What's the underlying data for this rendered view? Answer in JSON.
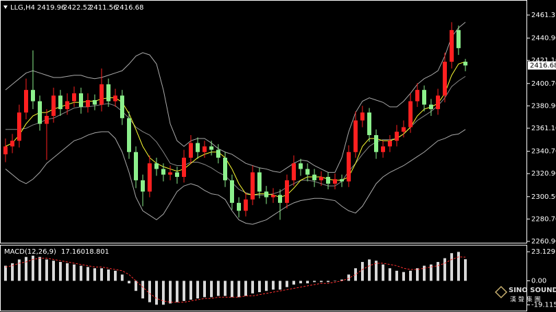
{
  "chart_data": [
    {
      "type": "candlestick",
      "title": "LLG,H4",
      "header_values": [
        2419.96,
        2422.52,
        2411.56,
        2416.68
      ],
      "up_color": "#ff2020",
      "down_color": "#8cf08c",
      "ylim": [
        2259.08,
        2471.6
      ],
      "yticks": [
        2461.31,
        {
          "value": 2440.9,
          "label": "2440.90"
        },
        {
          "value": 2421.1,
          "label": "2421.10"
        },
        {
          "value": 2400.7,
          "label": "2400.70"
        },
        {
          "value": 2380.9,
          "label": "2380.90"
        },
        {
          "value": 2361.1,
          "label": "2361.10"
        },
        {
          "value": 2340.7,
          "label": "2340.70"
        },
        {
          "value": 2320.9,
          "label": "2320.90"
        },
        {
          "value": 2300.5,
          "label": "2300.50"
        },
        {
          "value": 2280.7,
          "label": "2280.70"
        },
        {
          "value": 2260.9,
          "label": "2260.90"
        }
      ],
      "open": [
        2338,
        2345,
        2350,
        2375,
        2395,
        2385,
        2365,
        2372,
        2390,
        2378,
        2385,
        2392,
        2380,
        2386,
        2382,
        2400,
        2385,
        2390,
        2370,
        2340,
        2315,
        2305,
        2330,
        2325,
        2320,
        2322,
        2318,
        2335,
        2348,
        2340,
        2345,
        2342,
        2335,
        2315,
        2295,
        2288,
        2298,
        2322,
        2305,
        2300,
        2302,
        2295,
        2315,
        2330,
        2325,
        2320,
        2315,
        2318,
        2312,
        2316,
        2314,
        2340,
        2368,
        2375,
        2355,
        2340,
        2345,
        2350,
        2358,
        2362,
        2385,
        2395,
        2382,
        2378,
        2390,
        2420,
        2448,
        2419.96
      ],
      "high": [
        2352,
        2356,
        2382,
        2405,
        2430,
        2390,
        2378,
        2397,
        2395,
        2392,
        2398,
        2397,
        2392,
        2391,
        2414,
        2405,
        2396,
        2395,
        2376,
        2345,
        2320,
        2337,
        2335,
        2330,
        2328,
        2327,
        2342,
        2355,
        2353,
        2350,
        2350,
        2347,
        2340,
        2320,
        2300,
        2304,
        2328,
        2326,
        2310,
        2308,
        2307,
        2320,
        2337,
        2334,
        2330,
        2325,
        2323,
        2322,
        2321,
        2320,
        2346,
        2376,
        2381,
        2379,
        2360,
        2350,
        2355,
        2364,
        2368,
        2392,
        2401,
        2399,
        2387,
        2396,
        2428,
        2455,
        2452,
        2422.52
      ],
      "low": [
        2331,
        2339,
        2344,
        2369,
        2378,
        2359,
        2333,
        2366,
        2372,
        2373,
        2380,
        2374,
        2375,
        2377,
        2376,
        2380,
        2380,
        2364,
        2334,
        2308,
        2292,
        2300,
        2319,
        2314,
        2315,
        2312,
        2313,
        2330,
        2334,
        2335,
        2337,
        2330,
        2309,
        2289,
        2282,
        2283,
        2293,
        2299,
        2294,
        2295,
        2280,
        2290,
        2310,
        2319,
        2314,
        2309,
        2310,
        2307,
        2307,
        2309,
        2309,
        2335,
        2362,
        2349,
        2334,
        2335,
        2340,
        2345,
        2353,
        2357,
        2380,
        2376,
        2372,
        2373,
        2384,
        2414,
        2426,
        2411.56
      ],
      "close": [
        2345,
        2350,
        2375,
        2395,
        2385,
        2365,
        2372,
        2390,
        2378,
        2385,
        2392,
        2380,
        2386,
        2382,
        2400,
        2385,
        2390,
        2370,
        2340,
        2315,
        2305,
        2330,
        2325,
        2320,
        2322,
        2318,
        2335,
        2348,
        2340,
        2345,
        2342,
        2335,
        2315,
        2295,
        2288,
        2298,
        2322,
        2305,
        2300,
        2302,
        2295,
        2315,
        2330,
        2325,
        2320,
        2315,
        2318,
        2312,
        2316,
        2314,
        2340,
        2368,
        2375,
        2355,
        2340,
        2345,
        2350,
        2358,
        2362,
        2385,
        2395,
        2382,
        2378,
        2390,
        2420,
        2448,
        2432,
        2416.68
      ],
      "series": [
        {
          "color": "#aaaaaa",
          "values": [
            2395,
            2400,
            2405,
            2410,
            2412,
            2410,
            2408,
            2406,
            2406,
            2407,
            2408,
            2408,
            2406,
            2405,
            2406,
            2408,
            2410,
            2412,
            2418,
            2425,
            2428,
            2426,
            2418,
            2395,
            2365,
            2350,
            2345,
            2350,
            2352,
            2352,
            2348,
            2343,
            2340,
            2338,
            2334,
            2330,
            2328,
            2326,
            2325,
            2323,
            2322,
            2326,
            2330,
            2333,
            2332,
            2328,
            2325,
            2322,
            2322,
            2335,
            2358,
            2375,
            2385,
            2388,
            2386,
            2384,
            2380,
            2380,
            2385,
            2392,
            2400,
            2405,
            2408,
            2412,
            2425,
            2442,
            2450,
            2455
          ]
        },
        {
          "color": "#8a8a8a",
          "values": [
            2360,
            2360,
            2360,
            2361,
            2364,
            2366,
            2369,
            2370,
            2373,
            2376,
            2379,
            2380,
            2380,
            2381,
            2382,
            2383,
            2381,
            2376,
            2370,
            2362,
            2358,
            2355,
            2349,
            2340,
            2330,
            2328,
            2328,
            2331,
            2331,
            2329,
            2326,
            2322,
            2319,
            2313,
            2307,
            2304,
            2302,
            2302,
            2302,
            2303,
            2305,
            2309,
            2312,
            2315,
            2315,
            2314,
            2312,
            2310,
            2310,
            2314,
            2323,
            2330,
            2338,
            2345,
            2349,
            2351,
            2351,
            2352,
            2356,
            2362,
            2368,
            2372,
            2376,
            2381,
            2388,
            2398,
            2403,
            2407
          ]
        },
        {
          "color": "#aaaaaa",
          "values": [
            2325,
            2320,
            2315,
            2312,
            2316,
            2322,
            2330,
            2335,
            2340,
            2345,
            2350,
            2352,
            2355,
            2357,
            2358,
            2358,
            2352,
            2340,
            2322,
            2300,
            2288,
            2284,
            2280,
            2285,
            2295,
            2305,
            2310,
            2312,
            2310,
            2306,
            2303,
            2302,
            2298,
            2288,
            2280,
            2277,
            2276,
            2278,
            2280,
            2284,
            2288,
            2292,
            2295,
            2297,
            2298,
            2299,
            2299,
            2298,
            2297,
            2292,
            2288,
            2286,
            2292,
            2302,
            2312,
            2318,
            2322,
            2325,
            2328,
            2332,
            2336,
            2340,
            2345,
            2350,
            2352,
            2355,
            2356,
            2360
          ]
        },
        {
          "color": "#ffff33",
          "values": [
            2345,
            2348,
            2355,
            2365,
            2372,
            2375,
            2375,
            2378,
            2380,
            2382,
            2384,
            2384,
            2385,
            2385,
            2387,
            2388,
            2388,
            2384,
            2374,
            2360,
            2345,
            2335,
            2330,
            2327,
            2325,
            2323,
            2325,
            2330,
            2335,
            2338,
            2340,
            2340,
            2335,
            2325,
            2312,
            2303,
            2302,
            2303,
            2303,
            2302,
            2300,
            2302,
            2308,
            2315,
            2318,
            2318,
            2318,
            2316,
            2315,
            2315,
            2318,
            2330,
            2345,
            2352,
            2352,
            2350,
            2350,
            2352,
            2356,
            2362,
            2372,
            2378,
            2380,
            2383,
            2392,
            2408,
            2418,
            2420
          ]
        }
      ]
    },
    {
      "type": "macd",
      "title": "MACD(12,26,9)",
      "current_values": [
        17.16,
        18.801
      ],
      "current_value_labels": [
        "17.160",
        "18.801"
      ],
      "ylim": [
        -23.7,
        28.1
      ],
      "yticks": [
        23.129,
        {
          "value": 0,
          "label": "0.00"
        },
        -19.115
      ],
      "histogram_color": "#d8d8d8",
      "signal_color": "#ff3030",
      "histogram": [
        12,
        14,
        17,
        19,
        20,
        19,
        17,
        16,
        15,
        14,
        13,
        12,
        11,
        10,
        10,
        9,
        8,
        5,
        -2,
        -8,
        -14,
        -17,
        -19,
        -19,
        -18,
        -17,
        -16,
        -15,
        -14,
        -13,
        -13,
        -12,
        -12,
        -13,
        -13,
        -12,
        -10,
        -9,
        -8,
        -7,
        -7,
        -5,
        -3,
        -2,
        -2,
        -1,
        -1,
        -1,
        0,
        1,
        5,
        10,
        15,
        17,
        16,
        13,
        10,
        8,
        7,
        8,
        10,
        12,
        13,
        15,
        18,
        22,
        23,
        17.16
      ],
      "signal": [
        11,
        12,
        14,
        15,
        17,
        18,
        18,
        17,
        16,
        15,
        14,
        13,
        12,
        11,
        11,
        10,
        9,
        8,
        5,
        0,
        -5,
        -10,
        -14,
        -16,
        -17,
        -17,
        -17,
        -16,
        -15,
        -14,
        -14,
        -13,
        -13,
        -13,
        -13,
        -12,
        -12,
        -11,
        -10,
        -9,
        -8,
        -7,
        -6,
        -5,
        -4,
        -3,
        -2,
        -2,
        -1,
        0,
        2,
        5,
        9,
        12,
        14,
        14,
        13,
        12,
        10,
        9,
        9,
        10,
        11,
        12,
        14,
        17,
        19,
        18.801
      ]
    }
  ],
  "watermark": {
    "brand": "SINO SOUND",
    "chinese": "漢 聲 集 團"
  }
}
